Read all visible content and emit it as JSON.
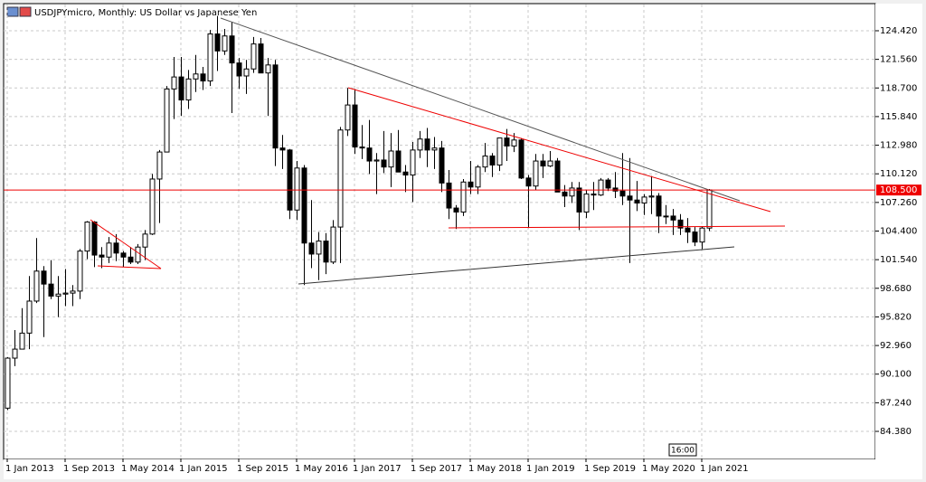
{
  "chart_data": {
    "type": "candlestick",
    "title": "USDJPYmicro, Monthly:  US Dollar vs Japanese Yen",
    "time_label": "16:00",
    "price_line": {
      "value": 108.5,
      "label": "108.500"
    },
    "ylim": [
      81.67,
      127.04
    ],
    "yticks": [
      {
        "value": 84.38,
        "label": "84.380"
      },
      {
        "value": 87.24,
        "label": "87.240"
      },
      {
        "value": 90.1,
        "label": "90.100"
      },
      {
        "value": 92.96,
        "label": "92.960"
      },
      {
        "value": 95.82,
        "label": "95.820"
      },
      {
        "value": 98.68,
        "label": "98.680"
      },
      {
        "value": 101.54,
        "label": "101.540"
      },
      {
        "value": 104.4,
        "label": "104.400"
      },
      {
        "value": 107.26,
        "label": "107.260"
      },
      {
        "value": 110.12,
        "label": "110.120"
      },
      {
        "value": 112.98,
        "label": "112.980"
      },
      {
        "value": 115.84,
        "label": "115.840"
      },
      {
        "value": 118.7,
        "label": "118.700"
      },
      {
        "value": 121.56,
        "label": "121.560"
      },
      {
        "value": 124.42,
        "label": "124.420"
      }
    ],
    "grid": true,
    "categories": [
      "1 Jan 2013",
      null,
      null,
      null,
      null,
      null,
      null,
      null,
      "1 Sep 2013",
      null,
      null,
      null,
      null,
      null,
      null,
      null,
      "1 May 2014",
      null,
      null,
      null,
      null,
      null,
      null,
      null,
      "1 Jan 2015",
      null,
      null,
      null,
      null,
      null,
      null,
      null,
      "1 Sep 2015",
      null,
      null,
      null,
      null,
      null,
      null,
      null,
      "1 May 2016",
      null,
      null,
      null,
      null,
      null,
      null,
      null,
      "1 Jan 2017",
      null,
      null,
      null,
      null,
      null,
      null,
      null,
      "1 Sep 2017",
      null,
      null,
      null,
      null,
      null,
      null,
      null,
      "1 May 2018",
      null,
      null,
      null,
      null,
      null,
      null,
      null,
      "1 Jan 2019",
      null,
      null,
      null,
      null,
      null,
      null,
      null,
      "1 Sep 2019",
      null,
      null,
      null,
      null,
      null,
      null,
      null,
      "1 May 2020",
      null,
      null,
      null,
      null,
      null,
      null,
      null,
      "1 Jan 2021",
      null
    ],
    "series": [
      {
        "values": [
          [
            86.7,
            91.8,
            86.5,
            91.7
          ],
          [
            91.7,
            94.5,
            90.9,
            92.6
          ],
          [
            92.6,
            96.7,
            92.6,
            94.2
          ],
          [
            94.2,
            99.9,
            92.6,
            97.4
          ],
          [
            97.4,
            103.7,
            97.2,
            100.4
          ],
          [
            100.4,
            100.9,
            93.8,
            99.1
          ],
          [
            99.1,
            101.5,
            97.6,
            97.9
          ],
          [
            97.9,
            99.9,
            95.8,
            98.1
          ],
          [
            98.1,
            100.6,
            96.9,
            98.2
          ],
          [
            98.2,
            99.0,
            96.9,
            98.4
          ],
          [
            98.4,
            102.6,
            97.6,
            102.4
          ],
          [
            102.4,
            105.4,
            101.6,
            105.3
          ],
          [
            105.3,
            105.4,
            100.8,
            102.0
          ],
          [
            102.0,
            102.8,
            100.7,
            101.8
          ],
          [
            101.8,
            103.8,
            101.2,
            103.2
          ],
          [
            103.2,
            104.1,
            101.4,
            102.2
          ],
          [
            102.2,
            102.4,
            100.8,
            101.8
          ],
          [
            101.8,
            102.8,
            101.1,
            101.3
          ],
          [
            101.3,
            103.1,
            101.1,
            102.8
          ],
          [
            102.8,
            104.5,
            101.5,
            104.1
          ],
          [
            104.1,
            110.1,
            104.0,
            109.6
          ],
          [
            109.6,
            112.5,
            105.2,
            112.3
          ],
          [
            112.3,
            118.9,
            112.3,
            118.6
          ],
          [
            118.6,
            121.8,
            115.6,
            119.8
          ],
          [
            119.8,
            121.8,
            115.9,
            117.5
          ],
          [
            117.5,
            120.5,
            116.6,
            119.6
          ],
          [
            119.6,
            122.0,
            118.3,
            120.1
          ],
          [
            120.1,
            120.8,
            118.5,
            119.4
          ],
          [
            119.4,
            124.5,
            118.9,
            124.1
          ],
          [
            124.1,
            125.9,
            120.4,
            122.4
          ],
          [
            122.4,
            124.6,
            122.0,
            123.9
          ],
          [
            123.9,
            125.3,
            116.2,
            121.2
          ],
          [
            121.2,
            121.7,
            118.6,
            119.9
          ],
          [
            119.9,
            121.5,
            118.1,
            120.6
          ],
          [
            120.6,
            123.8,
            120.2,
            123.1
          ],
          [
            123.1,
            123.7,
            120.2,
            120.2
          ],
          [
            120.2,
            121.7,
            115.9,
            121.0
          ],
          [
            121.0,
            121.5,
            110.9,
            112.7
          ],
          [
            112.7,
            114.0,
            110.6,
            112.5
          ],
          [
            112.5,
            112.6,
            105.6,
            106.5
          ],
          [
            106.5,
            111.4,
            105.5,
            110.7
          ],
          [
            110.7,
            111.0,
            99.0,
            103.2
          ],
          [
            103.2,
            107.5,
            100.7,
            102.1
          ],
          [
            102.1,
            104.3,
            99.5,
            103.4
          ],
          [
            103.4,
            104.2,
            100.1,
            101.3
          ],
          [
            101.3,
            105.5,
            101.1,
            104.8
          ],
          [
            104.8,
            114.8,
            101.2,
            114.5
          ],
          [
            114.5,
            118.7,
            113.9,
            117.0
          ],
          [
            117.0,
            118.6,
            112.1,
            112.8
          ],
          [
            112.8,
            115.0,
            111.6,
            112.7
          ],
          [
            112.7,
            115.5,
            110.1,
            111.4
          ],
          [
            111.4,
            112.2,
            108.1,
            111.5
          ],
          [
            111.5,
            114.4,
            110.2,
            110.8
          ],
          [
            110.8,
            114.2,
            108.8,
            112.4
          ],
          [
            112.4,
            114.5,
            110.3,
            110.3
          ],
          [
            110.3,
            111.0,
            108.3,
            110.0
          ],
          [
            110.0,
            113.3,
            107.3,
            112.5
          ],
          [
            112.5,
            114.4,
            111.7,
            113.6
          ],
          [
            113.6,
            114.7,
            110.8,
            112.5
          ],
          [
            112.5,
            113.8,
            110.6,
            112.7
          ],
          [
            112.7,
            113.4,
            108.3,
            109.2
          ],
          [
            109.2,
            110.5,
            105.6,
            106.7
          ],
          [
            106.7,
            107.0,
            104.6,
            106.3
          ],
          [
            106.3,
            109.6,
            105.9,
            109.3
          ],
          [
            109.3,
            111.4,
            108.1,
            108.8
          ],
          [
            108.8,
            111.0,
            108.1,
            110.8
          ],
          [
            110.8,
            113.2,
            110.3,
            111.9
          ],
          [
            111.9,
            112.2,
            109.8,
            111.0
          ],
          [
            111.0,
            113.7,
            110.4,
            113.7
          ],
          [
            113.7,
            114.6,
            111.4,
            112.9
          ],
          [
            112.9,
            114.2,
            112.3,
            113.5
          ],
          [
            113.5,
            113.7,
            109.6,
            109.7
          ],
          [
            109.7,
            110.0,
            104.7,
            108.9
          ],
          [
            108.9,
            112.1,
            108.5,
            111.4
          ],
          [
            111.4,
            112.1,
            109.7,
            110.9
          ],
          [
            110.9,
            112.4,
            110.8,
            111.4
          ],
          [
            111.4,
            111.7,
            108.3,
            108.3
          ],
          [
            108.3,
            109.0,
            106.8,
            107.9
          ],
          [
            107.9,
            109.3,
            107.2,
            108.7
          ],
          [
            108.7,
            109.3,
            104.5,
            106.3
          ],
          [
            106.3,
            108.5,
            105.7,
            108.1
          ],
          [
            108.1,
            109.3,
            106.5,
            108.0
          ],
          [
            108.0,
            109.7,
            107.9,
            109.5
          ],
          [
            109.5,
            109.7,
            108.4,
            108.7
          ],
          [
            108.7,
            110.3,
            107.7,
            108.4
          ],
          [
            108.4,
            112.2,
            107.0,
            107.9
          ],
          [
            107.9,
            111.7,
            101.2,
            107.5
          ],
          [
            107.5,
            109.4,
            106.4,
            107.2
          ],
          [
            107.2,
            108.1,
            106.0,
            107.8
          ],
          [
            107.8,
            109.9,
            106.1,
            107.9
          ],
          [
            107.9,
            108.2,
            104.2,
            105.9
          ],
          [
            105.9,
            107.0,
            105.1,
            105.9
          ],
          [
            105.9,
            106.6,
            104.0,
            105.5
          ],
          [
            105.5,
            106.1,
            104.0,
            104.7
          ],
          [
            104.7,
            105.7,
            103.2,
            104.3
          ],
          [
            104.3,
            104.8,
            102.9,
            103.3
          ],
          [
            103.3,
            104.9,
            102.6,
            104.7
          ],
          [
            104.7,
            108.6,
            104.4,
            108.5
          ]
        ]
      }
    ]
  }
}
